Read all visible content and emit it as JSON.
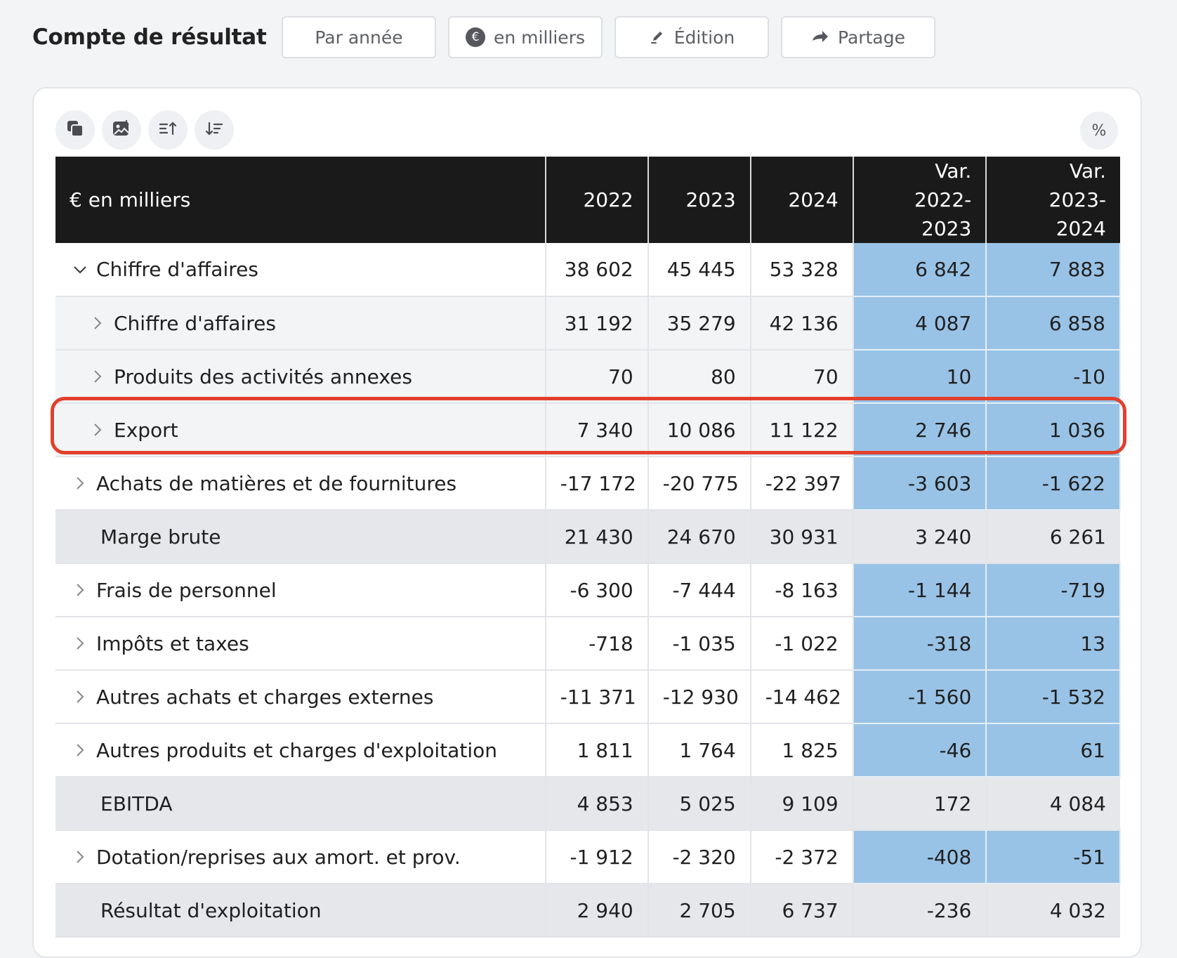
{
  "header": {
    "title": "Compte de résultat",
    "buttons": [
      {
        "label": "Par année"
      },
      {
        "label": "en milliers",
        "icon": "euro-icon"
      },
      {
        "label": "Édition",
        "icon": "pencil-icon"
      },
      {
        "label": "Partage",
        "icon": "share-arrow-icon"
      }
    ]
  },
  "toolbar": {
    "icons": [
      "copy-icon",
      "image-download-icon",
      "sort-ascending-icon",
      "sort-descending-icon"
    ],
    "percent_label": "%"
  },
  "table": {
    "columns": {
      "label": "€ en milliers",
      "y2022": "2022",
      "y2023": "2023",
      "y2024": "2024",
      "var1_line1": "Var.",
      "var1_line2": "2022-2023",
      "var2_line1": "Var.",
      "var2_line2": "2023-2024"
    },
    "rows": [
      {
        "label": "Chiffre d'affaires",
        "values": [
          "38 602",
          "45 445",
          "53 328",
          "6 842",
          "7 883"
        ]
      },
      {
        "label": "Chiffre d'affaires",
        "values": [
          "31 192",
          "35 279",
          "42 136",
          "4 087",
          "6 858"
        ]
      },
      {
        "label": "Produits des activités annexes",
        "values": [
          "70",
          "80",
          "70",
          "10",
          "-10"
        ]
      },
      {
        "label": "Export",
        "values": [
          "7 340",
          "10 086",
          "11 122",
          "2 746",
          "1 036"
        ]
      },
      {
        "label": "Achats de matières et de fournitures",
        "values": [
          "-17 172",
          "-20 775",
          "-22 397",
          "-3 603",
          "-1 622"
        ]
      },
      {
        "label": "Marge brute",
        "values": [
          "21 430",
          "24 670",
          "30 931",
          "3 240",
          "6 261"
        ]
      },
      {
        "label": "Frais de personnel",
        "values": [
          "-6 300",
          "-7 444",
          "-8 163",
          "-1 144",
          "-719"
        ]
      },
      {
        "label": "Impôts et taxes",
        "values": [
          "-718",
          "-1 035",
          "-1 022",
          "-318",
          "13"
        ]
      },
      {
        "label": "Autres achats et charges externes",
        "values": [
          "-11 371",
          "-12 930",
          "-14 462",
          "-1 560",
          "-1 532"
        ]
      },
      {
        "label": "Autres produits et charges d'exploitation",
        "values": [
          "1 811",
          "1 764",
          "1 825",
          "-46",
          "61"
        ]
      },
      {
        "label": "EBITDA",
        "values": [
          "4 853",
          "5 025",
          "9 109",
          "172",
          "4 084"
        ]
      },
      {
        "label": "Dotation/reprises aux amort. et prov.",
        "values": [
          "-1 912",
          "-2 320",
          "-2 372",
          "-408",
          "-51"
        ]
      },
      {
        "label": "Résultat d'exploitation",
        "values": [
          "2 940",
          "2 705",
          "6 737",
          "-236",
          "4 032"
        ]
      }
    ]
  },
  "colors": {
    "header_bg": "#1a1a1a",
    "variation_bg": "#99c3e6",
    "total_row_bg": "#e5e7eb",
    "highlight": "#e2402c"
  }
}
